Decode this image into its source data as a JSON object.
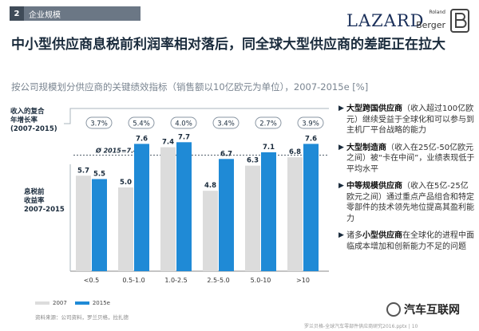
{
  "header": {
    "section_number": "2",
    "section_label": "企业规模",
    "logo_lazard": "LAZARD",
    "logo_rb_roland": "Roland",
    "logo_rb_berger": "Berger"
  },
  "title": "中小型供应商息税前利润率相对落后，同全球大型供应商的差距正在拉大",
  "subtitle": "按公司规模划分供应商的关键绩效指标（销售额以10亿欧元为单位），2007-2015e [%]",
  "cagr_label": "收入的复合\n年增长率\n(2007-2015)",
  "ebit_label": "息税前\n收益率\n2007-2015",
  "chart_data": {
    "type": "bar",
    "categories": [
      "<0.5",
      "0.5-1.0",
      "1.0-2.5",
      "2.5-5.0",
      "5.0-10",
      ">10"
    ],
    "series": [
      {
        "name": "2007",
        "values": [
          5.7,
          5.0,
          7.4,
          4.8,
          6.3,
          6.8
        ],
        "color": "#dcdcdc"
      },
      {
        "name": "2015e",
        "values": [
          5.5,
          7.6,
          7.7,
          6.7,
          7.1,
          7.6
        ],
        "color": "#1f8ad6"
      }
    ],
    "cagr": [
      "3.7%",
      "5.4%",
      "4.0%",
      "3.4%",
      "2.7%",
      "3.9%"
    ],
    "reference_line": {
      "label": "Ø 2015=7.4",
      "value": 7.4
    },
    "ylim": [
      0,
      9
    ],
    "legend_position": "bottom-left"
  },
  "right_panel": [
    {
      "bold": "大型跨国供应商",
      "text": "（收入超过100亿欧元）继续受益于全球化和可以参与到主机厂平台战略的能力"
    },
    {
      "bold": "大型制造商",
      "text": "（收入在25亿-50亿欧元之间）被“卡在中间”，业绩表现低于平均水平"
    },
    {
      "bold": "中等规模供应商",
      "text": "（收入在5亿-25亿欧元之间）通过重点产品组合和特定零部件的技术领先地位提高其盈利能力"
    },
    {
      "pre": "诸多",
      "bold": "小型供应商",
      "text": "在全球化的进程中面临成本增加和创新能力不足的问题"
    }
  ],
  "source": "资料来源：公司资料，罗兰贝格，拉扎德",
  "footer": "罗兰贝格-全球汽车零部件供应商研究2016.pptx | 10",
  "watermark": "汽车互联网"
}
